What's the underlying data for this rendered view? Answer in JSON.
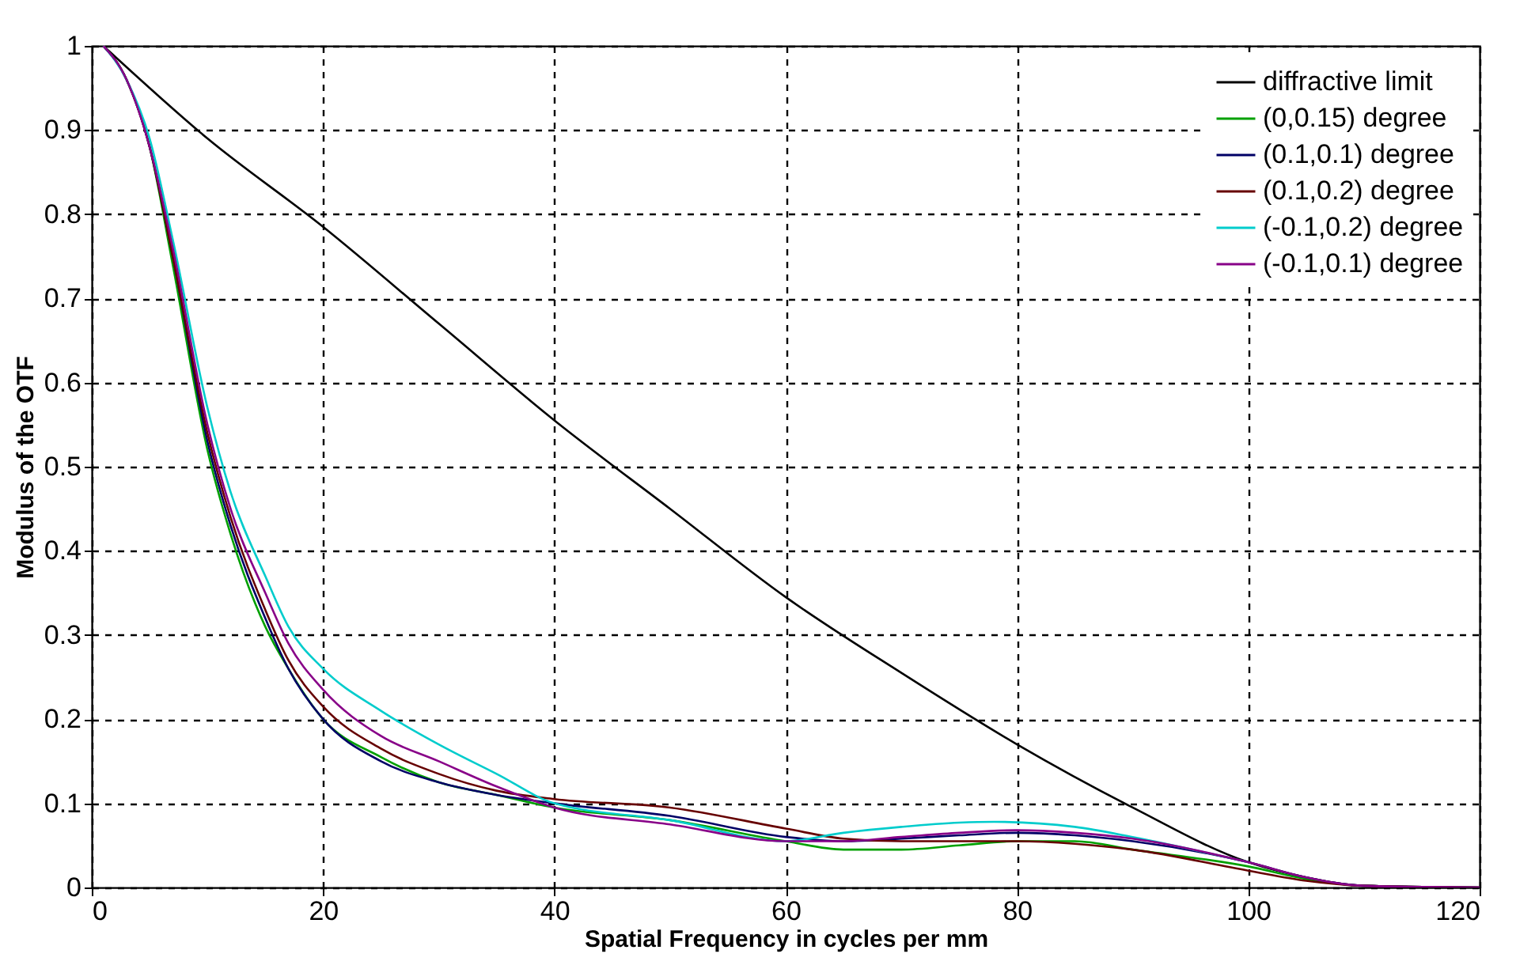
{
  "chart_data": {
    "type": "line",
    "xlabel": "Spatial Frequency in cycles per mm",
    "ylabel": "Modulus of the OTF",
    "xlim": [
      0,
      120
    ],
    "ylim": [
      0,
      1
    ],
    "xticks": [
      0,
      20,
      40,
      60,
      80,
      100,
      120
    ],
    "yticks": [
      0,
      0.1,
      0.2,
      0.3,
      0.4,
      0.5,
      0.6,
      0.7,
      0.8,
      0.9,
      1
    ],
    "grid": true,
    "legend": "top right",
    "line_style": "solid",
    "series": [
      {
        "name": "diffractive limit",
        "color": "#000000",
        "x": [
          1,
          10,
          20,
          30,
          40,
          50,
          60,
          70,
          80,
          90,
          100,
          105,
          110,
          120
        ],
        "values": [
          1,
          0.89,
          0.785,
          0.67,
          0.555,
          0.45,
          0.345,
          0.255,
          0.17,
          0.095,
          0.03,
          0.012,
          0.002,
          0
        ]
      },
      {
        "name": "(0,0.15) degree",
        "color": "#00a000",
        "x": [
          1,
          3,
          5,
          7,
          10,
          12,
          15,
          17,
          20,
          25,
          30,
          35,
          40,
          50,
          60,
          65,
          70,
          75,
          80,
          85,
          90,
          100,
          105,
          110,
          120
        ],
        "values": [
          1,
          0.96,
          0.88,
          0.74,
          0.52,
          0.42,
          0.31,
          0.26,
          0.2,
          0.155,
          0.125,
          0.11,
          0.095,
          0.08,
          0.055,
          0.045,
          0.045,
          0.05,
          0.055,
          0.055,
          0.045,
          0.025,
          0.01,
          0.002,
          0
        ]
      },
      {
        "name": "(0.1,0.1) degree",
        "color": "#000066",
        "x": [
          1,
          3,
          5,
          7,
          10,
          12,
          15,
          17,
          20,
          25,
          30,
          35,
          40,
          50,
          60,
          65,
          70,
          75,
          80,
          85,
          90,
          100,
          105,
          110,
          120
        ],
        "values": [
          1,
          0.96,
          0.88,
          0.75,
          0.53,
          0.43,
          0.32,
          0.26,
          0.2,
          0.15,
          0.125,
          0.11,
          0.1,
          0.085,
          0.06,
          0.055,
          0.058,
          0.062,
          0.065,
          0.062,
          0.055,
          0.03,
          0.012,
          0.002,
          0
        ]
      },
      {
        "name": "(0.1,0.2) degree",
        "color": "#660000",
        "x": [
          1,
          3,
          5,
          7,
          10,
          12,
          15,
          17,
          20,
          25,
          30,
          35,
          40,
          50,
          60,
          65,
          70,
          75,
          80,
          85,
          90,
          100,
          105,
          110,
          120
        ],
        "values": [
          1,
          0.96,
          0.88,
          0.75,
          0.54,
          0.44,
          0.33,
          0.27,
          0.215,
          0.165,
          0.135,
          0.115,
          0.105,
          0.095,
          0.07,
          0.058,
          0.055,
          0.055,
          0.055,
          0.052,
          0.045,
          0.02,
          0.008,
          0.002,
          0
        ]
      },
      {
        "name": "(-0.1,0.2) degree",
        "color": "#00cccc",
        "x": [
          1,
          3,
          5,
          7,
          10,
          12,
          15,
          17,
          20,
          25,
          30,
          35,
          40,
          50,
          60,
          65,
          70,
          75,
          78,
          85,
          90,
          100
        ],
        "values": [
          1,
          0.96,
          0.89,
          0.77,
          0.57,
          0.47,
          0.37,
          0.31,
          0.26,
          0.21,
          0.17,
          0.135,
          0.1,
          0.08,
          0.055,
          0.065,
          0.072,
          0.077,
          0.078,
          0.072,
          0.06,
          0.03
        ]
      },
      {
        "name": "(-0.1,0.1) degree",
        "color": "#880088",
        "x": [
          1,
          3,
          5,
          7,
          10,
          12,
          15,
          17,
          20,
          25,
          30,
          35,
          40,
          50,
          60,
          65,
          70,
          75,
          80,
          85,
          90,
          100,
          105,
          110,
          120
        ],
        "values": [
          1,
          0.96,
          0.88,
          0.76,
          0.55,
          0.45,
          0.35,
          0.29,
          0.235,
          0.18,
          0.15,
          0.12,
          0.095,
          0.075,
          0.055,
          0.055,
          0.06,
          0.065,
          0.068,
          0.065,
          0.058,
          0.03,
          0.012,
          0.002,
          0
        ]
      }
    ]
  }
}
